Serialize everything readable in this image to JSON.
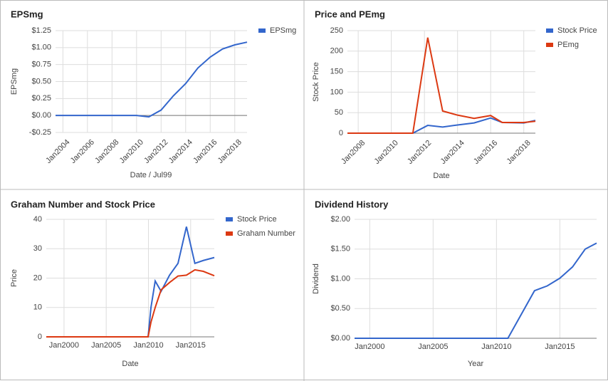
{
  "chart_data": [
    {
      "type": "line",
      "title": "EPSmg",
      "x_label": "Date / Jul99",
      "y_label": "EPSmg",
      "x": [
        2003.4,
        2005,
        2007,
        2009,
        2010,
        2011,
        2012,
        2013,
        2014,
        2015,
        2016,
        2017,
        2018,
        2019
      ],
      "series": [
        {
          "name": "EPSmg",
          "color": "#3366cc",
          "values": [
            0,
            0,
            0,
            0,
            0,
            -0.02,
            0.08,
            0.29,
            0.47,
            0.7,
            0.86,
            0.98,
            1.04,
            1.08
          ]
        }
      ],
      "xlim": [
        2003.4,
        2019
      ],
      "ylim": [
        -0.25,
        1.25
      ],
      "xticks": [
        {
          "value": 2004,
          "label": "Jan2004"
        },
        {
          "value": 2006,
          "label": "Jan2006"
        },
        {
          "value": 2008,
          "label": "Jan2008"
        },
        {
          "value": 2010,
          "label": "Jan2010"
        },
        {
          "value": 2012,
          "label": "Jan2012"
        },
        {
          "value": 2014,
          "label": "Jan2014"
        },
        {
          "value": 2016,
          "label": "Jan2016"
        },
        {
          "value": 2018,
          "label": "Jan2018"
        }
      ],
      "yticks": [
        {
          "value": -0.25,
          "label": "-$0.25"
        },
        {
          "value": 0,
          "label": "$0.00"
        },
        {
          "value": 0.25,
          "label": "$0.25"
        },
        {
          "value": 0.5,
          "label": "$0.50"
        },
        {
          "value": 0.75,
          "label": "$0.75"
        },
        {
          "value": 1,
          "label": "$1.00"
        },
        {
          "value": 1.25,
          "label": "$1.25"
        }
      ],
      "grid": true
    },
    {
      "type": "line",
      "title": "Price and PEmg",
      "x_label": "Date",
      "y_label": "Stock Price",
      "x": [
        2007.35,
        2011.3,
        2012.2,
        2013.1,
        2014,
        2015,
        2016,
        2016.7,
        2018,
        2018.7
      ],
      "series": [
        {
          "name": "Stock Price",
          "color": "#3366cc",
          "values": [
            0,
            0,
            19,
            15,
            20,
            25,
            37,
            26,
            25,
            31
          ]
        },
        {
          "name": "PEmg",
          "color": "#dc3912",
          "values": [
            0,
            0,
            233,
            54,
            44,
            36,
            43,
            26,
            26,
            29
          ]
        }
      ],
      "xlim": [
        2007.35,
        2018.7
      ],
      "ylim": [
        0,
        250
      ],
      "xticks": [
        {
          "value": 2008,
          "label": "Jan2008"
        },
        {
          "value": 2010,
          "label": "Jan2010"
        },
        {
          "value": 2012,
          "label": "Jan2012"
        },
        {
          "value": 2014,
          "label": "Jan2014"
        },
        {
          "value": 2016,
          "label": "Jan2016"
        },
        {
          "value": 2018,
          "label": "Jan2018"
        }
      ],
      "yticks": [
        0,
        50,
        100,
        150,
        200,
        250
      ],
      "grid": true
    },
    {
      "type": "line",
      "title": "Graham Number and Stock Price",
      "x_label": "Date",
      "y_label": "Price",
      "x": [
        1997.9,
        2009.96,
        2010.3,
        2010.8,
        2011.5,
        2012.5,
        2013.5,
        2014.5,
        2015.5,
        2016.5,
        2017.8
      ],
      "series": [
        {
          "name": "Stock Price",
          "color": "#3366cc",
          "values": [
            0,
            0,
            10,
            19,
            15.5,
            21,
            25,
            37.5,
            25,
            26,
            27
          ]
        },
        {
          "name": "Graham Number",
          "color": "#dc3912",
          "values": [
            0,
            0,
            5,
            10,
            16,
            18.5,
            20.7,
            21,
            22.8,
            22.3,
            20.8
          ]
        }
      ],
      "xlim": [
        1997.9,
        2017.8
      ],
      "ylim": [
        0,
        40
      ],
      "xticks": [
        {
          "value": 2000,
          "label": "Jan2000"
        },
        {
          "value": 2005,
          "label": "Jan2005"
        },
        {
          "value": 2010,
          "label": "Jan2010"
        },
        {
          "value": 2015,
          "label": "Jan2015"
        }
      ],
      "yticks": [
        0,
        10,
        20,
        30,
        40
      ],
      "grid": true
    },
    {
      "type": "line",
      "title": "Dividend History",
      "x_label": "Year",
      "y_label": "Dividend",
      "x": [
        1998.8,
        2010.9,
        2013,
        2014,
        2015,
        2016,
        2017,
        2017.9
      ],
      "series": [
        {
          "color": "#3366cc",
          "values": [
            0,
            0,
            0.8,
            0.88,
            1.01,
            1.2,
            1.5,
            1.6
          ]
        }
      ],
      "xlim": [
        1998.8,
        2017.9
      ],
      "ylim": [
        0,
        2
      ],
      "xticks": [
        {
          "value": 2000,
          "label": "Jan2000"
        },
        {
          "value": 2005,
          "label": "Jan2005"
        },
        {
          "value": 2010,
          "label": "Jan2010"
        },
        {
          "value": 2015,
          "label": "Jan2015"
        }
      ],
      "yticks": [
        {
          "value": 0,
          "label": "$0.00"
        },
        {
          "value": 0.5,
          "label": "$0.50"
        },
        {
          "value": 1,
          "label": "$1.00"
        },
        {
          "value": 1.5,
          "label": "$1.50"
        },
        {
          "value": 2,
          "label": "$2.00"
        }
      ],
      "grid": true
    }
  ]
}
